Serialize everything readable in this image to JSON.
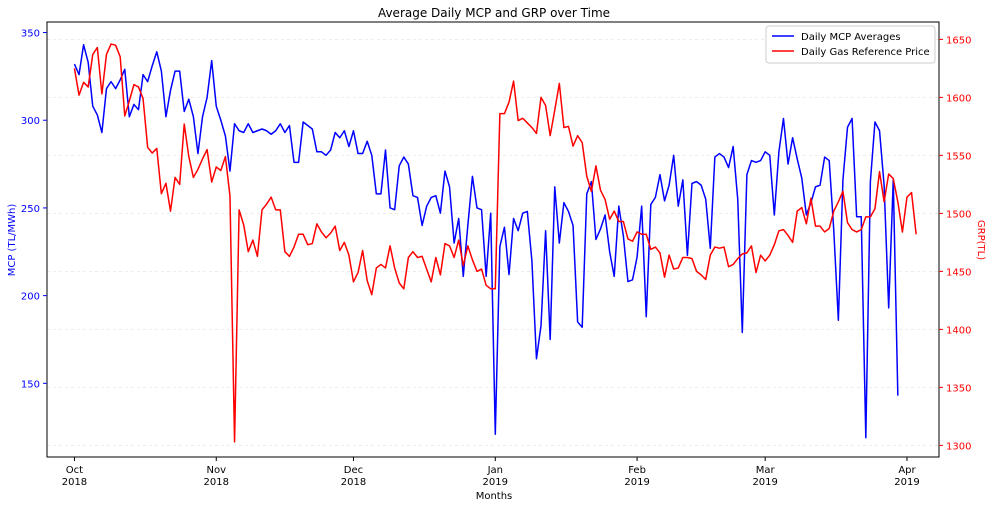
{
  "chart_data": {
    "type": "line",
    "title": "Average Daily MCP and GRP over Time",
    "xlabel": "Months",
    "ylabel_left": "MCP (TL/MWh)",
    "ylabel_right": "GRP(TL)",
    "xlim": [
      "2018-09-25",
      "2019-04-08"
    ],
    "ylim_left": [
      108,
      356
    ],
    "ylim_right": [
      1290,
      1665
    ],
    "x_ticks": [
      {
        "date": "2018-10-01",
        "line1": "Oct",
        "line2": "2018"
      },
      {
        "date": "2018-11-01",
        "line1": "Nov",
        "line2": "2018"
      },
      {
        "date": "2018-12-01",
        "line1": "Dec",
        "line2": "2018"
      },
      {
        "date": "2019-01-01",
        "line1": "Jan",
        "line2": "2019"
      },
      {
        "date": "2019-02-01",
        "line1": "Feb",
        "line2": "2019"
      },
      {
        "date": "2019-03-01",
        "line1": "Mar",
        "line2": "2019"
      },
      {
        "date": "2019-04-01",
        "line1": "Apr",
        "line2": "2019"
      }
    ],
    "left_ticks": [
      150,
      200,
      250,
      300,
      350
    ],
    "right_ticks": [
      1300,
      1350,
      1400,
      1450,
      1500,
      1550,
      1600,
      1650
    ],
    "grid": "horizontal dashed, light",
    "legend_position": "top-right",
    "start_date": "2018-10-01",
    "series": [
      {
        "name": "Daily MCP Averages",
        "axis": "left",
        "color": "#0000ff",
        "values": [
          332,
          326,
          343,
          333,
          308,
          303,
          293,
          318,
          322,
          318,
          323,
          329,
          302,
          309,
          306,
          326,
          322,
          331,
          339,
          328,
          302,
          317,
          328,
          328,
          305,
          312,
          302,
          281,
          302,
          313,
          334,
          308,
          300,
          291,
          271,
          298,
          294,
          293,
          298,
          293,
          294,
          295,
          294,
          292,
          294,
          298,
          293,
          297,
          276,
          276,
          299,
          297,
          295,
          282,
          282,
          280,
          283,
          293,
          290,
          294,
          285,
          294,
          281,
          281,
          288,
          280,
          258,
          258,
          283,
          250,
          249,
          274,
          279,
          275,
          257,
          256,
          240,
          251,
          256,
          257,
          247,
          271,
          262,
          230,
          244,
          211,
          240,
          268,
          250,
          249,
          211,
          247,
          121,
          228,
          239,
          212,
          244,
          237,
          247,
          248,
          220,
          164,
          183,
          237,
          175,
          262,
          230,
          253,
          248,
          240,
          185,
          182,
          258,
          265,
          232,
          238,
          246,
          225,
          211,
          251,
          234,
          208,
          209,
          222,
          251,
          188,
          252,
          256,
          269,
          254,
          263,
          280,
          251,
          266,
          223,
          264,
          265,
          263,
          255,
          227,
          279,
          281,
          279,
          273,
          285,
          255,
          179,
          269,
          277,
          276,
          277,
          282,
          280,
          246,
          282,
          301,
          275,
          290,
          278,
          267,
          246,
          253,
          262,
          263,
          279,
          277,
          237,
          186,
          266,
          296,
          301,
          245,
          245,
          119,
          265,
          299,
          294,
          263,
          193,
          266,
          143
        ]
      },
      {
        "name": "Daily Gas Reference Price",
        "axis": "right",
        "color": "#ff0000",
        "values": [
          1625,
          1602,
          1613,
          1609,
          1637,
          1643,
          1603,
          1637,
          1646,
          1645,
          1635,
          1584,
          1597,
          1611,
          1609,
          1599,
          1557,
          1552,
          1556,
          1517,
          1526,
          1502,
          1531,
          1525,
          1577,
          1549,
          1531,
          1538,
          1547,
          1555,
          1527,
          1540,
          1537,
          1549,
          1515,
          1303,
          1503,
          1490,
          1467,
          1477,
          1463,
          1503,
          1508,
          1514,
          1503,
          1503,
          1467,
          1463,
          1471,
          1482,
          1482,
          1473,
          1474,
          1491,
          1484,
          1479,
          1483,
          1489,
          1468,
          1475,
          1464,
          1441,
          1449,
          1468,
          1442,
          1430,
          1453,
          1456,
          1453,
          1472,
          1453,
          1440,
          1435,
          1462,
          1467,
          1462,
          1463,
          1452,
          1441,
          1462,
          1447,
          1474,
          1472,
          1462,
          1477,
          1455,
          1472,
          1460,
          1450,
          1452,
          1438,
          1435,
          1435,
          1586,
          1586,
          1596,
          1614,
          1580,
          1582,
          1578,
          1574,
          1569,
          1600,
          1593,
          1567,
          1589,
          1612,
          1574,
          1575,
          1558,
          1567,
          1561,
          1532,
          1519,
          1541,
          1520,
          1512,
          1495,
          1502,
          1493,
          1493,
          1478,
          1476,
          1484,
          1482,
          1482,
          1469,
          1471,
          1466,
          1445,
          1464,
          1452,
          1453,
          1462,
          1462,
          1461,
          1450,
          1447,
          1443,
          1464,
          1471,
          1470,
          1471,
          1454,
          1456,
          1461,
          1465,
          1466,
          1472,
          1449,
          1464,
          1459,
          1464,
          1473,
          1485,
          1486,
          1481,
          1475,
          1502,
          1505,
          1491,
          1513,
          1489,
          1489,
          1484,
          1487,
          1502,
          1510,
          1519,
          1492,
          1486,
          1484,
          1486,
          1497,
          1497,
          1504,
          1536,
          1510,
          1534,
          1530,
          1510,
          1484,
          1514,
          1518,
          1482
        ]
      }
    ]
  }
}
